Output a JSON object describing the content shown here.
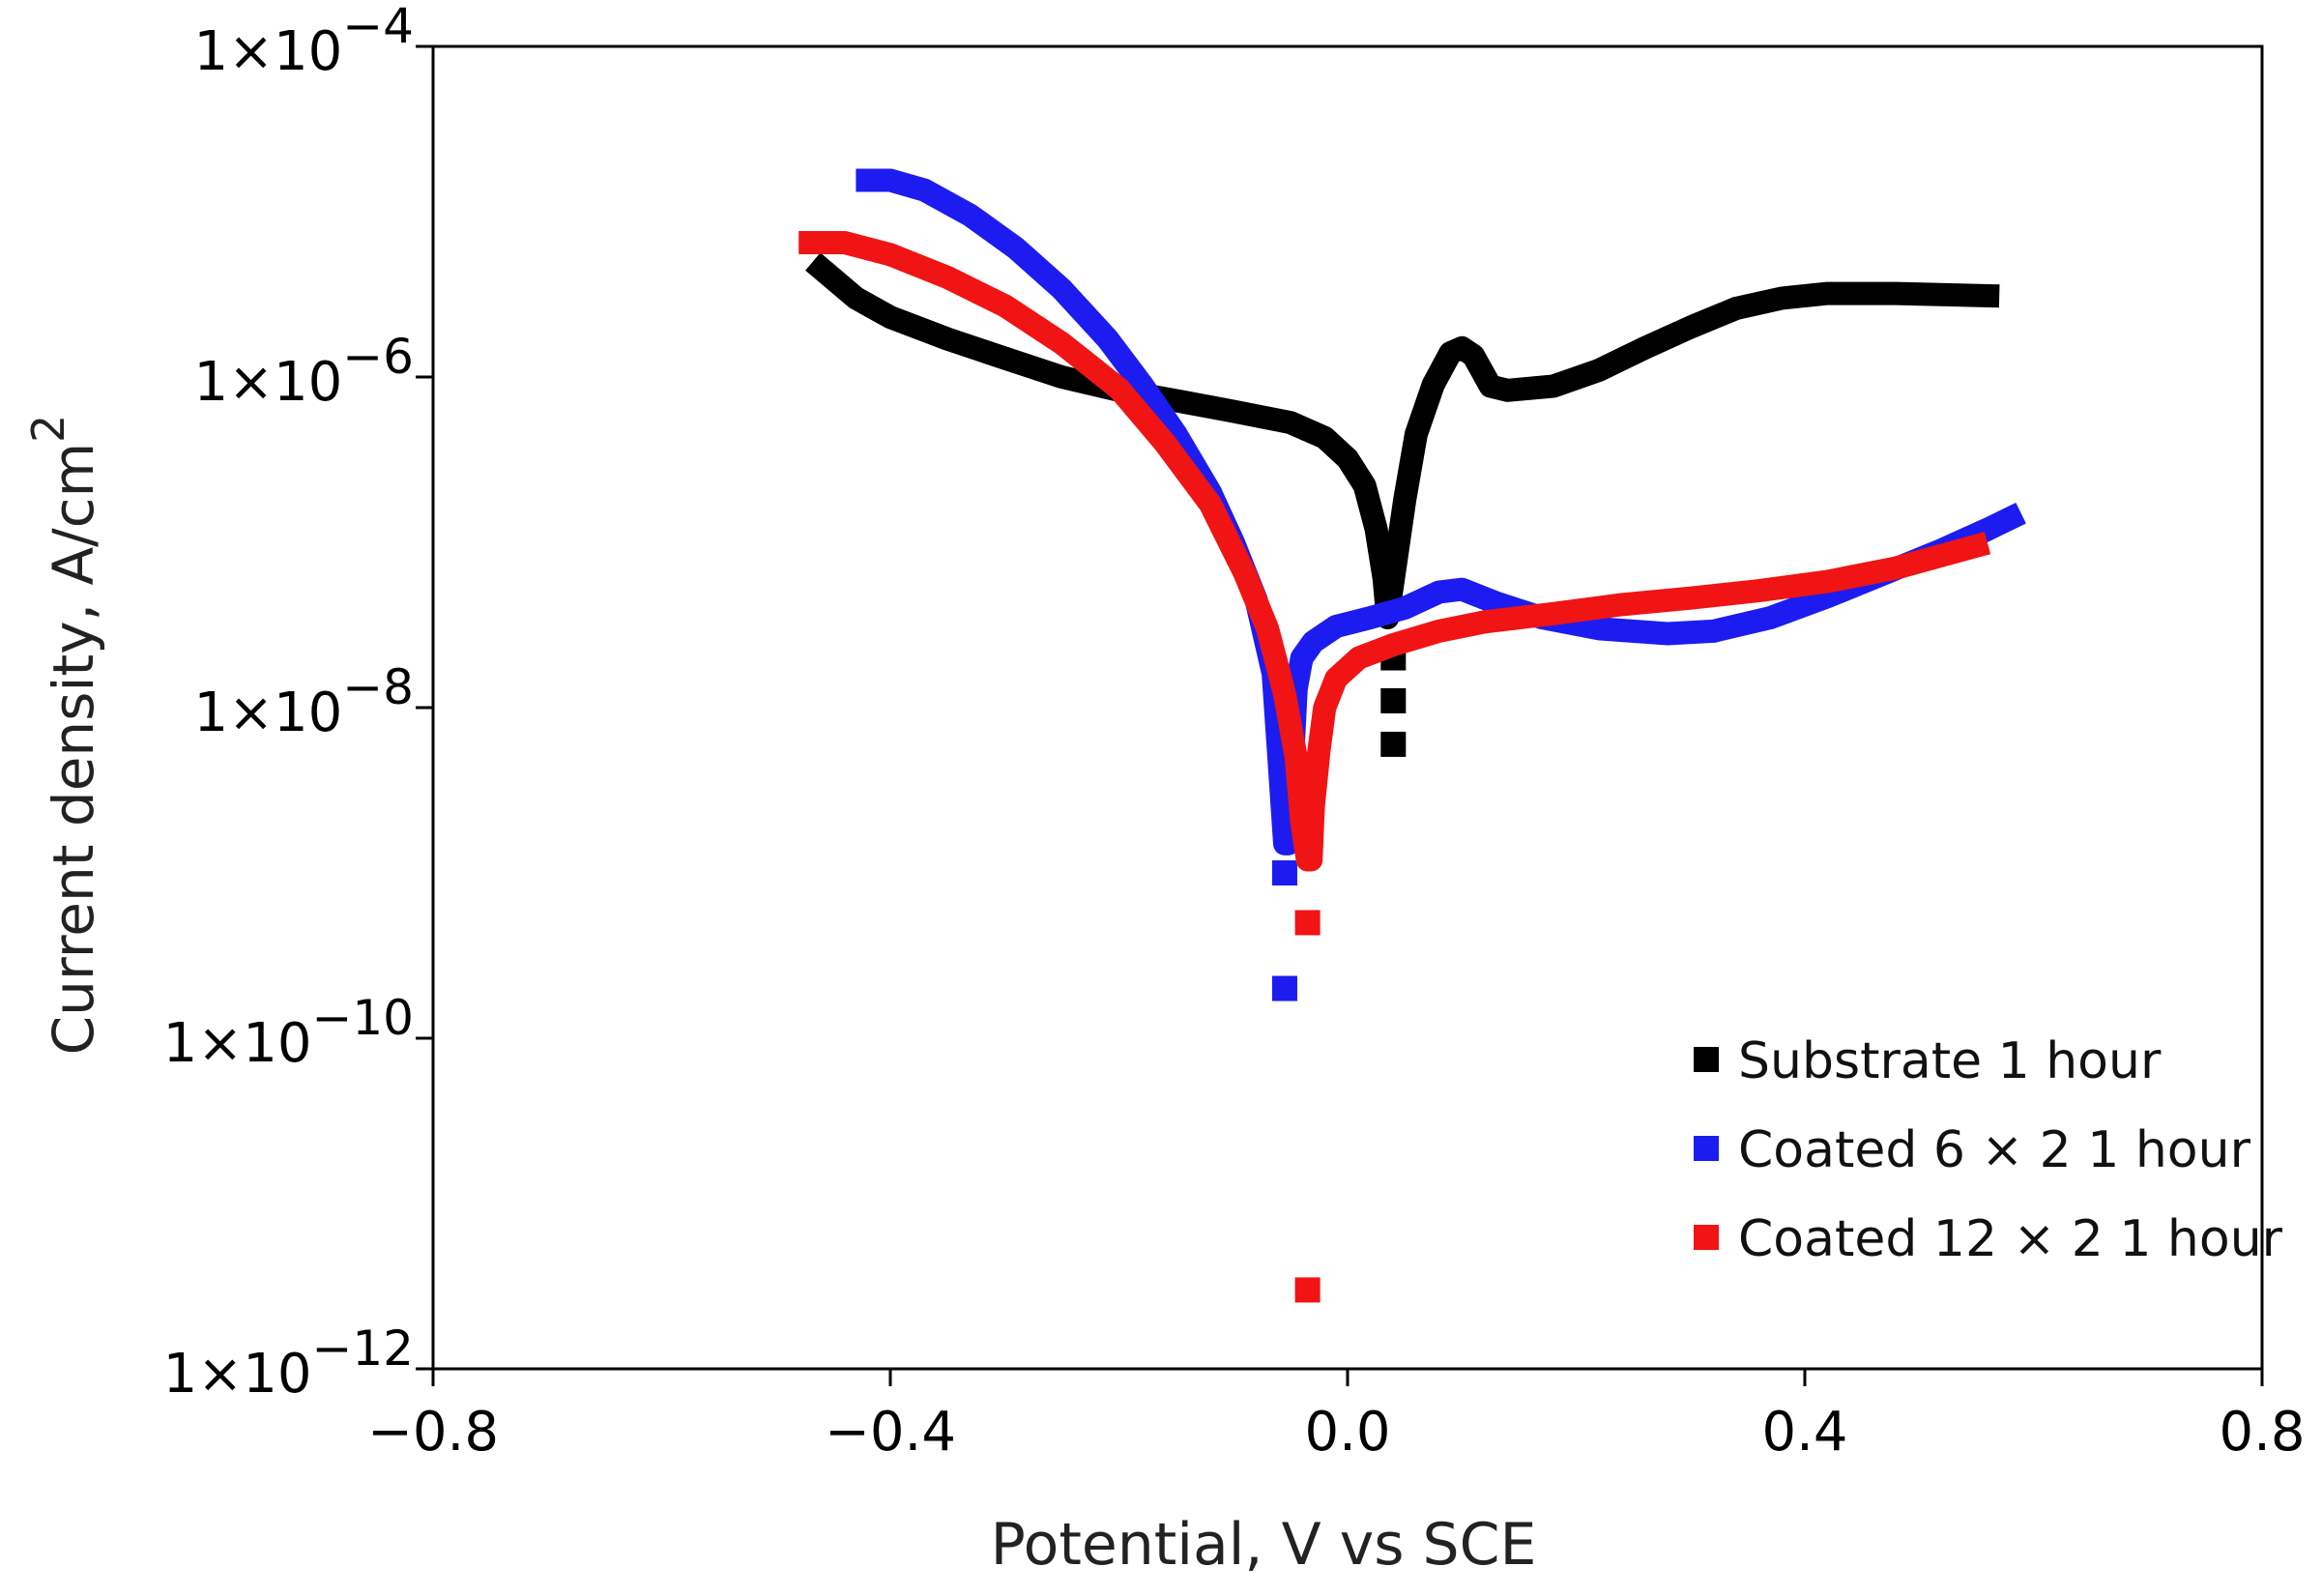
{
  "chart_data": {
    "type": "line",
    "title": "",
    "xlabel": "Potential, V vs SCE",
    "ylabel": "Current density, A/cm",
    "ylabel_superscript": "2",
    "xscale": "linear",
    "yscale": "log",
    "xlim": [
      -0.8,
      0.8
    ],
    "ylim": [
      1e-12,
      0.0001
    ],
    "grid": false,
    "legend_position": "bottom-right",
    "x_ticks": [
      {
        "value": -0.8,
        "label": "−0.8"
      },
      {
        "value": -0.4,
        "label": "−0.4"
      },
      {
        "value": 0.0,
        "label": "0.0"
      },
      {
        "value": 0.4,
        "label": "0.4"
      },
      {
        "value": 0.8,
        "label": "0.8"
      }
    ],
    "y_ticks": [
      {
        "value": 0.0001,
        "mantissa": "1×10",
        "exponent": "−4"
      },
      {
        "value": 1e-06,
        "mantissa": "1×10",
        "exponent": "−6"
      },
      {
        "value": 1e-08,
        "mantissa": "1×10",
        "exponent": "−8"
      },
      {
        "value": 1e-10,
        "mantissa": "1×10",
        "exponent": "−10"
      },
      {
        "value": 1e-12,
        "mantissa": "1×10",
        "exponent": "−12"
      }
    ],
    "series": [
      {
        "name": "Substrate 1 hour",
        "color": "#000000",
        "line_points": [
          [
            -0.46,
            4.5e-06
          ],
          [
            -0.43,
            3e-06
          ],
          [
            -0.4,
            2.3e-06
          ],
          [
            -0.35,
            1.7e-06
          ],
          [
            -0.3,
            1.3e-06
          ],
          [
            -0.25,
            1e-06
          ],
          [
            -0.2,
            8.3e-07
          ],
          [
            -0.15,
            7.2e-07
          ],
          [
            -0.1,
            6.2e-07
          ],
          [
            -0.05,
            5.3e-07
          ],
          [
            -0.02,
            4.3e-07
          ],
          [
            0.0,
            3.2e-07
          ],
          [
            0.015,
            2.2e-07
          ],
          [
            0.025,
            1.2e-07
          ],
          [
            0.032,
            6e-08
          ],
          [
            0.035,
            3.5e-08
          ],
          [
            0.04,
            6e-08
          ],
          [
            0.05,
            1.8e-07
          ],
          [
            0.06,
            4.5e-07
          ],
          [
            0.075,
            9e-07
          ],
          [
            0.09,
            1.4e-06
          ],
          [
            0.1,
            1.5e-06
          ],
          [
            0.11,
            1.35e-06
          ],
          [
            0.125,
            8.8e-07
          ],
          [
            0.14,
            8.3e-07
          ],
          [
            0.18,
            8.8e-07
          ],
          [
            0.22,
            1.1e-06
          ],
          [
            0.26,
            1.5e-06
          ],
          [
            0.3,
            2e-06
          ],
          [
            0.34,
            2.6e-06
          ],
          [
            0.38,
            3e-06
          ],
          [
            0.42,
            3.2e-06
          ],
          [
            0.48,
            3.2e-06
          ],
          [
            0.56,
            3.1e-06
          ]
        ],
        "scatter_points": [
          [
            0.04,
            2e-08
          ],
          [
            0.04,
            1.1e-08
          ],
          [
            0.04,
            6e-09
          ]
        ]
      },
      {
        "name": "Coated 6 × 2  1 hour",
        "color": "#1c1cf0",
        "line_points": [
          [
            -0.42,
            1.55e-05
          ],
          [
            -0.4,
            1.55e-05
          ],
          [
            -0.37,
            1.35e-05
          ],
          [
            -0.33,
            9.5e-06
          ],
          [
            -0.29,
            6e-06
          ],
          [
            -0.25,
            3.4e-06
          ],
          [
            -0.21,
            1.7e-06
          ],
          [
            -0.18,
            9e-07
          ],
          [
            -0.15,
            4.5e-07
          ],
          [
            -0.12,
            2e-07
          ],
          [
            -0.1,
            1e-07
          ],
          [
            -0.08,
            4.5e-08
          ],
          [
            -0.065,
            1.6e-08
          ],
          [
            -0.06,
            5e-09
          ],
          [
            -0.055,
            1.5e-09
          ],
          [
            -0.052,
            1.5e-09
          ],
          [
            -0.048,
            5e-09
          ],
          [
            -0.045,
            1.3e-08
          ],
          [
            -0.04,
            2e-08
          ],
          [
            -0.03,
            2.5e-08
          ],
          [
            -0.01,
            3.1e-08
          ],
          [
            0.02,
            3.5e-08
          ],
          [
            0.05,
            4e-08
          ],
          [
            0.08,
            5e-08
          ],
          [
            0.1,
            5.2e-08
          ],
          [
            0.13,
            4.3e-08
          ],
          [
            0.17,
            3.5e-08
          ],
          [
            0.22,
            3e-08
          ],
          [
            0.28,
            2.8e-08
          ],
          [
            0.32,
            2.9e-08
          ],
          [
            0.37,
            3.5e-08
          ],
          [
            0.42,
            4.7e-08
          ],
          [
            0.47,
            6.5e-08
          ],
          [
            0.52,
            9e-08
          ],
          [
            0.56,
            1.2e-07
          ],
          [
            0.58,
            1.4e-07
          ]
        ],
        "scatter_points": [
          [
            -0.055,
            2e-10
          ],
          [
            -0.055,
            1e-09
          ]
        ]
      },
      {
        "name": "Coated 12 × 2  1 hour",
        "color": "#f01414",
        "line_points": [
          [
            -0.47,
            6.5e-06
          ],
          [
            -0.44,
            6.5e-06
          ],
          [
            -0.4,
            5.5e-06
          ],
          [
            -0.35,
            4e-06
          ],
          [
            -0.3,
            2.7e-06
          ],
          [
            -0.25,
            1.6e-06
          ],
          [
            -0.2,
            8.5e-07
          ],
          [
            -0.16,
            4e-07
          ],
          [
            -0.12,
            1.7e-07
          ],
          [
            -0.09,
            6.5e-08
          ],
          [
            -0.07,
            3e-08
          ],
          [
            -0.055,
            1.2e-08
          ],
          [
            -0.045,
            5e-09
          ],
          [
            -0.04,
            2e-09
          ],
          [
            -0.035,
            1.2e-09
          ],
          [
            -0.032,
            1.2e-09
          ],
          [
            -0.03,
            2.5e-09
          ],
          [
            -0.025,
            5.5e-09
          ],
          [
            -0.02,
            1e-08
          ],
          [
            -0.01,
            1.5e-08
          ],
          [
            0.01,
            2e-08
          ],
          [
            0.04,
            2.4e-08
          ],
          [
            0.08,
            2.9e-08
          ],
          [
            0.12,
            3.3e-08
          ],
          [
            0.18,
            3.7e-08
          ],
          [
            0.24,
            4.2e-08
          ],
          [
            0.3,
            4.6e-08
          ],
          [
            0.36,
            5.1e-08
          ],
          [
            0.42,
            5.8e-08
          ],
          [
            0.48,
            7e-08
          ],
          [
            0.55,
            9.5e-08
          ]
        ],
        "scatter_points": [
          [
            -0.035,
            5e-10
          ],
          [
            -0.035,
            3e-12
          ]
        ]
      }
    ]
  }
}
